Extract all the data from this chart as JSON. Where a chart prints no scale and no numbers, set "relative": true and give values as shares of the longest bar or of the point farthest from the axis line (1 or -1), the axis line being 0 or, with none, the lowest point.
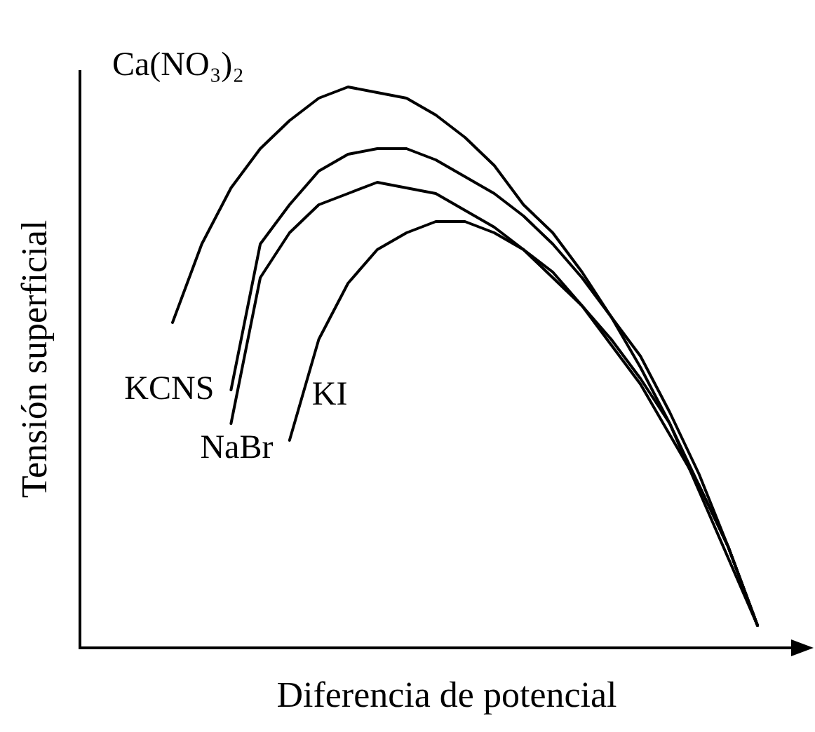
{
  "chart_data": {
    "type": "line",
    "relative": true,
    "xlabel": "Diferencia de potencial",
    "ylabel": "Tensión superficial",
    "marker": "none",
    "line_style": "solid",
    "categories": [
      null,
      null,
      null,
      null,
      null,
      null,
      null,
      null,
      null,
      null,
      null,
      null,
      null,
      null,
      null,
      null,
      null,
      null,
      null,
      null,
      null
    ],
    "series": [
      {
        "name": "Ca(NO₃)₂",
        "color": "#000000",
        "values": [
          0.58,
          0.72,
          0.82,
          0.89,
          0.94,
          0.98,
          1.0,
          0.99,
          0.98,
          0.95,
          0.91,
          0.86,
          0.79,
          0.74,
          0.67,
          0.59,
          0.5,
          0.4,
          0.28,
          0.16,
          0.04
        ]
      },
      {
        "name": "KCNS",
        "color": "#000000",
        "values": [
          null,
          null,
          0.46,
          0.72,
          0.79,
          0.85,
          0.88,
          0.89,
          0.89,
          0.87,
          0.84,
          0.81,
          0.77,
          0.72,
          0.66,
          0.59,
          0.52,
          0.42,
          0.31,
          0.18,
          0.04
        ]
      },
      {
        "name": "NaBr",
        "color": "#000000",
        "values": [
          null,
          null,
          0.4,
          0.66,
          0.74,
          0.79,
          0.81,
          0.83,
          0.82,
          0.81,
          0.78,
          0.75,
          0.71,
          0.67,
          0.61,
          0.55,
          0.48,
          0.4,
          0.29,
          0.18,
          0.04
        ]
      },
      {
        "name": "KI",
        "color": "#000000",
        "values": [
          null,
          null,
          null,
          null,
          0.37,
          0.55,
          0.65,
          0.71,
          0.74,
          0.76,
          0.76,
          0.74,
          0.71,
          0.66,
          0.61,
          0.54,
          0.47,
          0.38,
          0.29,
          0.18,
          0.04
        ]
      }
    ]
  }
}
